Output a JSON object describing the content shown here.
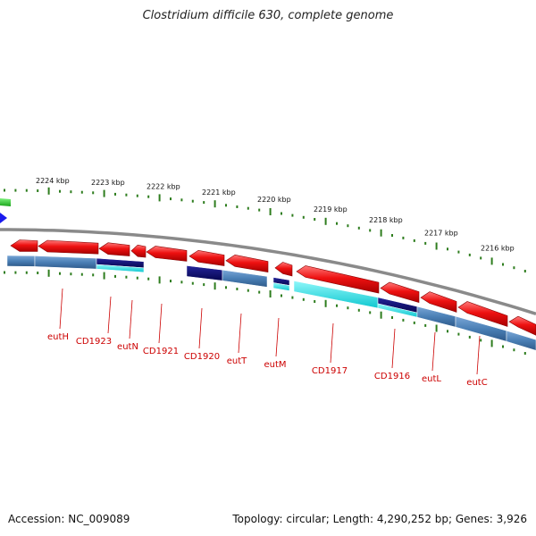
{
  "title": "Clostridium difficile 630, complete genome",
  "footer": {
    "accession": "Accession: NC_009089",
    "topology": "Topology: circular; Length: 4,290,252 bp; Genes: 3,926"
  },
  "colors": {
    "forward_gene": "#ee1111",
    "cds_steel": "#4a7fb5",
    "cds_navy": "#0a0a72",
    "cds_cyan": "#19e3ea",
    "ticks": "#2e7d1e",
    "backbone": "#8a8a8a",
    "label": "#cc0000"
  },
  "kbp_ticks": [
    "2224 kbp",
    "2223 kbp",
    "2222 kbp",
    "2221 kbp",
    "2220 kbp",
    "2219 kbp",
    "2218 kbp",
    "2217 kbp",
    "2216 kbp"
  ],
  "gene_labels": [
    "eutH",
    "CD1923",
    "eutN",
    "CD1921",
    "CD1920",
    "eutT",
    "eutM",
    "CD1917",
    "CD1916",
    "eutL",
    "eutC"
  ]
}
